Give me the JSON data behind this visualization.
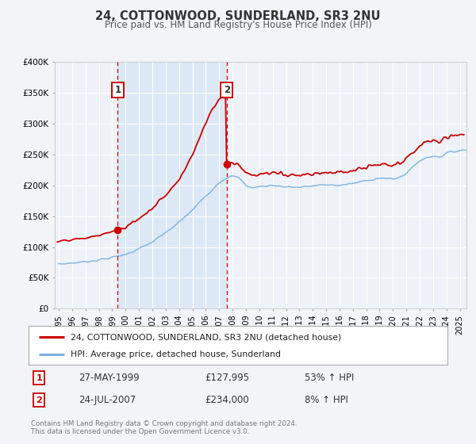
{
  "title": "24, COTTONWOOD, SUNDERLAND, SR3 2NU",
  "subtitle": "Price paid vs. HM Land Registry's House Price Index (HPI)",
  "ylim": [
    0,
    400000
  ],
  "yticks": [
    0,
    50000,
    100000,
    150000,
    200000,
    250000,
    300000,
    350000,
    400000
  ],
  "ytick_labels": [
    "£0",
    "£50K",
    "£100K",
    "£150K",
    "£200K",
    "£250K",
    "£300K",
    "£350K",
    "£400K"
  ],
  "xlim_start": 1994.7,
  "xlim_end": 2025.5,
  "bg_color": "#eef2f8",
  "grid_color": "#ffffff",
  "transaction1": {
    "date_num": 1999.41,
    "price": 127995,
    "label": "1",
    "date_str": "27-MAY-1999",
    "price_str": "£127,995",
    "hpi_str": "53% ↑ HPI"
  },
  "transaction2": {
    "date_num": 2007.56,
    "price": 234000,
    "label": "2",
    "date_str": "24-JUL-2007",
    "price_str": "£234,000",
    "hpi_str": "8% ↑ HPI"
  },
  "hpi_line_color": "#7ab0e0",
  "price_line_color": "#cc0000",
  "shaded_region_color": "#dce8f5",
  "legend_label_price": "24, COTTONWOOD, SUNDERLAND, SR3 2NU (detached house)",
  "legend_label_hpi": "HPI: Average price, detached house, Sunderland",
  "footer": "Contains HM Land Registry data © Crown copyright and database right 2024.\nThis data is licensed under the Open Government Licence v3.0.",
  "xtick_years": [
    1995,
    1996,
    1997,
    1998,
    1999,
    2000,
    2001,
    2002,
    2003,
    2004,
    2005,
    2006,
    2007,
    2008,
    2009,
    2010,
    2011,
    2012,
    2013,
    2014,
    2015,
    2016,
    2017,
    2018,
    2019,
    2020,
    2021,
    2022,
    2023,
    2024,
    2025
  ]
}
